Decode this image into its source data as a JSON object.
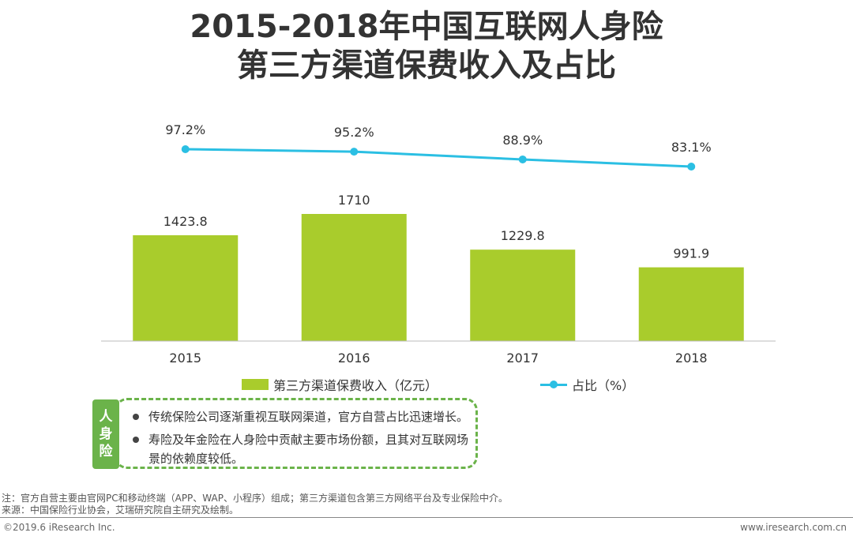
{
  "title_line1": "2015-2018年中国互联网人身险",
  "title_line2": "第三方渠道保费收入及占比",
  "chart_data": {
    "type": "bar",
    "categories": [
      "2015",
      "2016",
      "2017",
      "2018"
    ],
    "series": [
      {
        "name": "第三方渠道保费收入（亿元）",
        "type": "bar",
        "values": [
          1423.8,
          1710,
          1229.8,
          991.9
        ],
        "labels": [
          "1423.8",
          "1710",
          "1229.8",
          "991.9"
        ],
        "color": "#a9cc2c"
      },
      {
        "name": "占比（%）",
        "type": "line",
        "values": [
          97.2,
          95.2,
          88.9,
          83.1
        ],
        "labels": [
          "97.2%",
          "95.2%",
          "88.9%",
          "83.1%"
        ],
        "color": "#2bbfe3"
      }
    ]
  },
  "legend": {
    "bar_label": "第三方渠道保费收入（亿元）",
    "line_label": "占比（%）"
  },
  "note": {
    "tag": [
      "人",
      "身",
      "险"
    ],
    "items": [
      "传统保险公司逐渐重视互联网渠道，官方自营占比迅速增长。",
      "寿险及年金险在人身险中贡献主要市场份额，且其对互联网场景的依赖度较低。"
    ]
  },
  "footnotes": [
    "注：官方自营主要由官网PC和移动终端（APP、WAP、小程序）组成；第三方渠道包含第三方网络平台及专业保险中介。",
    "来源：中国保险行业协会，艾瑞研究院自主研究及绘制。"
  ],
  "footer": {
    "left": "©2019.6 iResearch Inc.",
    "right": "www.iresearch.com.cn"
  }
}
